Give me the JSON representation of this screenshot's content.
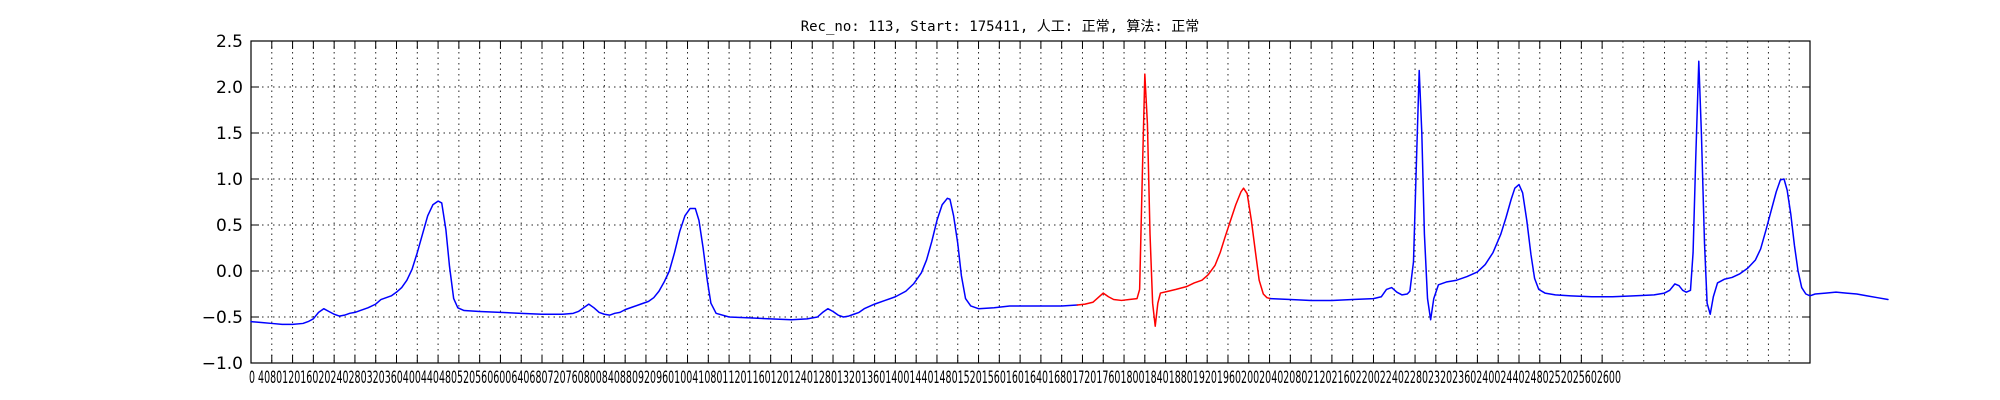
{
  "chart_data": {
    "type": "line",
    "title": "Rec_no: 113, Start: 175411, 人工: 正常, 算法: 正常",
    "xlabel": "",
    "ylabel": "",
    "xlim": [
      0,
      3000
    ],
    "ylim": [
      -1.0,
      2.5
    ],
    "grid": true,
    "legend": "none",
    "x_tick_values": [
      0,
      40,
      80,
      120,
      160,
      200,
      240,
      280,
      320,
      360,
      400,
      440,
      480,
      520,
      560,
      600,
      640,
      680,
      720,
      760,
      800,
      840,
      880,
      920,
      960,
      1000,
      1040,
      1080,
      1120,
      1160,
      1200,
      1240,
      1280,
      1320,
      1360,
      1400,
      1440,
      1480,
      1520,
      1560,
      1600,
      1640,
      1680,
      1720,
      1760,
      1800,
      1840,
      1880,
      1920,
      1960,
      2000,
      2040,
      2080,
      2120,
      2160,
      2200,
      2240,
      2280,
      2320,
      2360,
      2400,
      2440,
      2480,
      2520,
      2560,
      2600
    ],
    "x_tick_labels": "0 4080120160202402803203604004404805205606006406807207608008408809209601004108011201160120124012801320136014001440148015201560160164016801720176018001840188019201960200204020802120216022002240228023202360240024402480252025602600",
    "y_ticks": [
      -1.0,
      -0.5,
      0.0,
      0.5,
      1.0,
      1.5,
      2.0,
      2.5
    ],
    "y_tick_labels": [
      "−1.0",
      "−0.5",
      "0.0",
      "0.5",
      "1.0",
      "1.5",
      "2.0",
      "2.5"
    ],
    "x_grid_step": 40,
    "baseline_points": [
      [
        0,
        -0.55
      ],
      [
        20,
        -0.56
      ],
      [
        40,
        -0.57
      ],
      [
        60,
        -0.58
      ],
      [
        80,
        -0.58
      ],
      [
        100,
        -0.57
      ],
      [
        110,
        -0.55
      ],
      [
        120,
        -0.52
      ],
      [
        130,
        -0.45
      ],
      [
        140,
        -0.41
      ],
      [
        150,
        -0.44
      ],
      [
        160,
        -0.47
      ],
      [
        170,
        -0.49
      ],
      [
        180,
        -0.48
      ],
      [
        190,
        -0.46
      ],
      [
        200,
        -0.45
      ],
      [
        210,
        -0.43
      ],
      [
        225,
        -0.4
      ],
      [
        240,
        -0.36
      ],
      [
        250,
        -0.31
      ],
      [
        260,
        -0.29
      ],
      [
        270,
        -0.27
      ],
      [
        280,
        -0.23
      ],
      [
        290,
        -0.18
      ],
      [
        300,
        -0.1
      ],
      [
        310,
        0.02
      ],
      [
        320,
        0.2
      ],
      [
        330,
        0.4
      ],
      [
        340,
        0.6
      ],
      [
        350,
        0.72
      ],
      [
        360,
        0.76
      ],
      [
        367,
        0.74
      ],
      [
        375,
        0.45
      ],
      [
        382,
        0.05
      ],
      [
        390,
        -0.3
      ],
      [
        398,
        -0.4
      ],
      [
        410,
        -0.43
      ],
      [
        440,
        -0.44
      ],
      [
        480,
        -0.45
      ],
      [
        520,
        -0.46
      ],
      [
        560,
        -0.47
      ],
      [
        600,
        -0.47
      ],
      [
        620,
        -0.46
      ],
      [
        630,
        -0.44
      ],
      [
        640,
        -0.4
      ],
      [
        650,
        -0.36
      ],
      [
        660,
        -0.4
      ],
      [
        670,
        -0.45
      ],
      [
        680,
        -0.47
      ],
      [
        690,
        -0.48
      ],
      [
        700,
        -0.46
      ],
      [
        710,
        -0.45
      ],
      [
        720,
        -0.42
      ],
      [
        735,
        -0.39
      ],
      [
        750,
        -0.36
      ],
      [
        765,
        -0.33
      ],
      [
        775,
        -0.29
      ],
      [
        785,
        -0.22
      ],
      [
        795,
        -0.12
      ],
      [
        805,
        0.0
      ],
      [
        815,
        0.2
      ],
      [
        825,
        0.43
      ],
      [
        835,
        0.6
      ],
      [
        845,
        0.68
      ],
      [
        855,
        0.68
      ],
      [
        862,
        0.55
      ],
      [
        870,
        0.25
      ],
      [
        878,
        -0.1
      ],
      [
        885,
        -0.35
      ],
      [
        895,
        -0.46
      ],
      [
        920,
        -0.5
      ],
      [
        960,
        -0.51
      ],
      [
        1000,
        -0.52
      ],
      [
        1040,
        -0.53
      ],
      [
        1070,
        -0.52
      ],
      [
        1090,
        -0.5
      ],
      [
        1100,
        -0.45
      ],
      [
        1110,
        -0.41
      ],
      [
        1120,
        -0.44
      ],
      [
        1130,
        -0.48
      ],
      [
        1140,
        -0.5
      ],
      [
        1150,
        -0.49
      ],
      [
        1160,
        -0.47
      ],
      [
        1170,
        -0.45
      ],
      [
        1180,
        -0.41
      ],
      [
        1200,
        -0.36
      ],
      [
        1220,
        -0.32
      ],
      [
        1240,
        -0.28
      ],
      [
        1260,
        -0.22
      ],
      [
        1275,
        -0.14
      ],
      [
        1290,
        -0.02
      ],
      [
        1300,
        0.12
      ],
      [
        1310,
        0.32
      ],
      [
        1320,
        0.55
      ],
      [
        1330,
        0.72
      ],
      [
        1340,
        0.79
      ],
      [
        1345,
        0.78
      ],
      [
        1352,
        0.6
      ],
      [
        1360,
        0.3
      ],
      [
        1367,
        -0.05
      ],
      [
        1375,
        -0.3
      ],
      [
        1385,
        -0.38
      ],
      [
        1400,
        -0.41
      ],
      [
        1430,
        -0.4
      ],
      [
        1460,
        -0.38
      ],
      [
        1490,
        -0.38
      ],
      [
        1520,
        -0.38
      ],
      [
        1560,
        -0.38
      ],
      [
        1590,
        -0.37
      ]
    ],
    "highlight_points": [
      [
        1590,
        -0.37
      ],
      [
        1605,
        -0.36
      ],
      [
        1620,
        -0.34
      ],
      [
        1630,
        -0.29
      ],
      [
        1640,
        -0.24
      ],
      [
        1650,
        -0.28
      ],
      [
        1660,
        -0.31
      ],
      [
        1675,
        -0.32
      ],
      [
        1690,
        -0.31
      ],
      [
        1705,
        -0.3
      ],
      [
        1710,
        -0.2
      ],
      [
        1715,
        1.0
      ],
      [
        1720,
        2.14
      ],
      [
        1725,
        1.6
      ],
      [
        1730,
        0.4
      ],
      [
        1735,
        -0.35
      ],
      [
        1740,
        -0.6
      ],
      [
        1745,
        -0.35
      ],
      [
        1750,
        -0.24
      ],
      [
        1765,
        -0.22
      ],
      [
        1780,
        -0.2
      ],
      [
        1800,
        -0.17
      ],
      [
        1815,
        -0.13
      ],
      [
        1830,
        -0.1
      ],
      [
        1842,
        -0.04
      ],
      [
        1855,
        0.06
      ],
      [
        1865,
        0.2
      ],
      [
        1875,
        0.38
      ],
      [
        1885,
        0.55
      ],
      [
        1895,
        0.72
      ],
      [
        1905,
        0.86
      ],
      [
        1910,
        0.9
      ],
      [
        1917,
        0.84
      ],
      [
        1925,
        0.55
      ],
      [
        1933,
        0.2
      ],
      [
        1940,
        -0.1
      ],
      [
        1948,
        -0.25
      ],
      [
        1955,
        -0.29
      ],
      [
        1962,
        -0.3
      ]
    ],
    "tail_points": [
      [
        1962,
        -0.3
      ],
      [
        2000,
        -0.31
      ],
      [
        2040,
        -0.32
      ],
      [
        2080,
        -0.32
      ],
      [
        2120,
        -0.31
      ],
      [
        2160,
        -0.3
      ],
      [
        2175,
        -0.28
      ],
      [
        2185,
        -0.2
      ],
      [
        2195,
        -0.18
      ],
      [
        2205,
        -0.23
      ],
      [
        2215,
        -0.26
      ],
      [
        2225,
        -0.25
      ],
      [
        2230,
        -0.22
      ],
      [
        2237,
        0.1
      ],
      [
        2243,
        1.25
      ],
      [
        2248,
        2.18
      ],
      [
        2253,
        1.5
      ],
      [
        2258,
        0.4
      ],
      [
        2264,
        -0.3
      ],
      [
        2270,
        -0.53
      ],
      [
        2276,
        -0.3
      ],
      [
        2285,
        -0.15
      ],
      [
        2300,
        -0.12
      ],
      [
        2320,
        -0.1
      ],
      [
        2340,
        -0.06
      ],
      [
        2360,
        -0.01
      ],
      [
        2375,
        0.07
      ],
      [
        2390,
        0.2
      ],
      [
        2405,
        0.4
      ],
      [
        2415,
        0.58
      ],
      [
        2425,
        0.78
      ],
      [
        2432,
        0.9
      ],
      [
        2440,
        0.94
      ],
      [
        2447,
        0.85
      ],
      [
        2455,
        0.55
      ],
      [
        2463,
        0.18
      ],
      [
        2470,
        -0.08
      ],
      [
        2478,
        -0.2
      ],
      [
        2490,
        -0.24
      ],
      [
        2510,
        -0.26
      ],
      [
        2540,
        -0.27
      ],
      [
        2580,
        -0.28
      ],
      [
        2620,
        -0.28
      ],
      [
        2660,
        -0.27
      ],
      [
        2700,
        -0.26
      ],
      [
        2720,
        -0.24
      ],
      [
        2730,
        -0.21
      ],
      [
        2740,
        -0.14
      ],
      [
        2748,
        -0.16
      ],
      [
        2755,
        -0.21
      ],
      [
        2762,
        -0.23
      ],
      [
        2770,
        -0.21
      ],
      [
        2775,
        0.2
      ],
      [
        2780,
        1.2
      ],
      [
        2786,
        2.28
      ],
      [
        2791,
        1.5
      ],
      [
        2797,
        0.3
      ],
      [
        2802,
        -0.35
      ],
      [
        2808,
        -0.47
      ],
      [
        2814,
        -0.28
      ],
      [
        2822,
        -0.13
      ],
      [
        2835,
        -0.09
      ],
      [
        2850,
        -0.07
      ],
      [
        2865,
        -0.03
      ],
      [
        2880,
        0.03
      ],
      [
        2895,
        0.12
      ],
      [
        2905,
        0.24
      ],
      [
        2915,
        0.44
      ],
      [
        2925,
        0.65
      ],
      [
        2935,
        0.86
      ],
      [
        2943,
        0.99
      ],
      [
        2950,
        1.0
      ],
      [
        2956,
        0.88
      ],
      [
        2963,
        0.62
      ],
      [
        2970,
        0.28
      ],
      [
        2977,
        0.0
      ],
      [
        2984,
        -0.18
      ],
      [
        2992,
        -0.25
      ],
      [
        3000,
        -0.27
      ]
    ],
    "tail_end_points": [
      [
        3000,
        -0.27
      ],
      [
        3010,
        -0.25
      ],
      [
        3030,
        -0.24
      ],
      [
        3050,
        -0.23
      ],
      [
        3070,
        -0.24
      ],
      [
        3090,
        -0.25
      ],
      [
        3110,
        -0.27
      ],
      [
        3130,
        -0.29
      ],
      [
        3150,
        -0.31
      ]
    ],
    "series_colors": [
      "#0000ff",
      "#ff0000"
    ]
  }
}
